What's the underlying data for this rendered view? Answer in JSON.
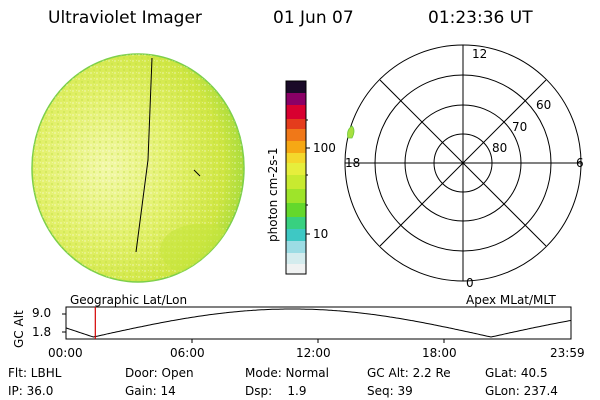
{
  "header": {
    "instrument": "Ultraviolet Imager",
    "date": "01 Jun 07",
    "time": "01:23:36 UT"
  },
  "colorbar": {
    "label": "photon cm-2s-1",
    "ticks": [
      "100",
      "10"
    ]
  },
  "polar_plot": {
    "mlt_labels": {
      "top": "12",
      "left": "18",
      "right": "6",
      "bottom": "0"
    },
    "lat_labels": [
      "60",
      "70",
      "80"
    ]
  },
  "panel_labels": {
    "left": "Geographic Lat/Lon",
    "right": "Apex MLat/MLT"
  },
  "altitude_plot": {
    "ylabel": "GC Alt",
    "yticks": [
      "9.0",
      "1.8"
    ],
    "xticks": [
      "00:00",
      "06:00",
      "12:00",
      "18:00",
      "23:59"
    ],
    "current_time_hours": 1.393
  },
  "info": {
    "row1": [
      "Flt: LBHL",
      "Door: Open",
      "Mode: Normal",
      "GC Alt: 2.2 Re",
      "GLat:  40.5"
    ],
    "row2": [
      "IP: 36.0",
      "Gain: 14",
      "Dsp:    1.9",
      "Seq: 39",
      "GLon: 237.4"
    ]
  },
  "colors": {
    "disk_fill": "#d8ec48",
    "disk_edge": "#7ccf4a",
    "marker": "#d40000"
  }
}
